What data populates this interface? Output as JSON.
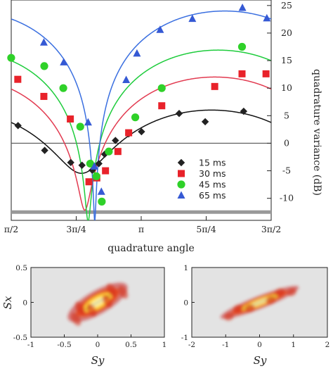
{
  "chart_data": [
    {
      "type": "scatter",
      "title": "",
      "xlabel": "quadrature angle",
      "ylabel": "quadrature variance (dB)",
      "xlim": [
        1.5708,
        4.7124
      ],
      "ylim": [
        -14,
        26
      ],
      "x_ticks": [
        {
          "value": 1.5708,
          "label": "π/2"
        },
        {
          "value": 2.3562,
          "label": "3π/4"
        },
        {
          "value": 3.1416,
          "label": "π"
        },
        {
          "value": 3.927,
          "label": "5π/4"
        },
        {
          "value": 4.7124,
          "label": "3π/2"
        }
      ],
      "y_ticks": [
        {
          "value": 25,
          "label": "25"
        },
        {
          "value": 20,
          "label": "20"
        },
        {
          "value": 15,
          "label": "15"
        },
        {
          "value": 10,
          "label": "10"
        },
        {
          "value": 5,
          "label": "5"
        },
        {
          "value": 0,
          "label": "0"
        },
        {
          "value": -5,
          "label": "-5"
        },
        {
          "value": -10,
          "label": "-10"
        }
      ],
      "reference_lines": [
        {
          "value": 0,
          "color": "#555555"
        },
        {
          "value": -12.5,
          "color": "#999999"
        }
      ],
      "legend_position": "lower-right",
      "series": [
        {
          "name": "15 ms",
          "marker": "diamond",
          "color": "#222222",
          "curve_color": "#111111",
          "x": [
            1.653,
            1.975,
            2.29,
            2.426,
            2.55,
            2.63,
            2.7,
            2.83,
            2.99,
            3.145,
            3.6,
            3.915,
            4.38
          ],
          "y": [
            3.2,
            -1.3,
            -3.5,
            -4.0,
            -4.9,
            -3.7,
            -2.0,
            0.5,
            1.7,
            2.1,
            5.4,
            3.9,
            5.8
          ],
          "fit": {
            "r": 5.7,
            "phi0": 2.42,
            "amp": 0.0025,
            "offset": -5.5,
            "period": 3.1416
          }
        },
        {
          "name": "30 ms",
          "marker": "square",
          "color": "#e8222a",
          "curve_color": "#e23a50",
          "x": [
            1.65,
            1.965,
            2.285,
            2.51,
            2.605,
            2.71,
            2.86,
            2.99,
            3.39,
            4.03,
            4.36,
            4.65
          ],
          "y": [
            11.6,
            8.5,
            4.4,
            -7.0,
            -6.3,
            -5.0,
            -1.5,
            1.9,
            6.8,
            10.3,
            12.6,
            12.6
          ],
          "fit": {
            "r": 12.0,
            "phi0": 2.46,
            "amp": 0.0006,
            "offset": -12.2,
            "period": 3.1416
          }
        },
        {
          "name": "45 ms",
          "marker": "circle",
          "color": "#2fd129",
          "curve_color": "#1ecc3c",
          "x": [
            1.57,
            1.97,
            2.2,
            2.405,
            2.525,
            2.6,
            2.665,
            2.75,
            3.07,
            3.39,
            4.36
          ],
          "y": [
            15.5,
            14.0,
            10.0,
            3.0,
            -3.7,
            -6.0,
            -10.6,
            -1.5,
            4.7,
            10.0,
            17.5
          ],
          "fit": {
            "r": 16.9,
            "phi0": 2.5,
            "amp": 0.00022,
            "offset": -14.2,
            "period": 3.1416
          }
        },
        {
          "name": "65 ms",
          "marker": "triangle",
          "color": "#3559d4",
          "curve_color": "#3a6fe0",
          "x": [
            1.965,
            2.205,
            2.5,
            2.575,
            2.66,
            2.96,
            3.09,
            3.37,
            3.76,
            4.365,
            4.66
          ],
          "y": [
            18.3,
            14.7,
            3.8,
            -4.2,
            -8.8,
            11.5,
            16.3,
            20.6,
            22.6,
            24.6,
            22.7
          ],
          "fit": {
            "r": 24.0,
            "phi0": 2.58,
            "amp": 8e-05,
            "offset": -14.2,
            "period": 3.1416
          }
        }
      ]
    },
    {
      "type": "heatmap",
      "title": "",
      "xlabel": "Sy",
      "ylabel": "Sx",
      "xlim": [
        -1,
        1
      ],
      "ylim": [
        -0.5,
        0.5
      ],
      "x_ticks": [
        "-1",
        "-0.5",
        "0",
        "0.5",
        "1"
      ],
      "y_ticks": [
        "0.5",
        "0",
        "-0.5"
      ],
      "background": "#e3e3e3",
      "distribution": {
        "center": [
          0,
          0
        ],
        "slope": 0.55,
        "half_length": 0.42,
        "half_width": 0.07
      }
    },
    {
      "type": "heatmap",
      "title": "",
      "xlabel": "Sy",
      "ylabel": "",
      "xlim": [
        -2,
        2
      ],
      "ylim": [
        -1,
        1
      ],
      "x_ticks": [
        "-2",
        "-1",
        "0",
        "1",
        "2"
      ],
      "y_ticks": [
        "1",
        "0",
        "-1"
      ],
      "background": "#e3e3e3",
      "distribution": {
        "center": [
          0,
          0
        ],
        "slope": 0.38,
        "half_length": 1.1,
        "half_width": 0.05
      }
    }
  ]
}
